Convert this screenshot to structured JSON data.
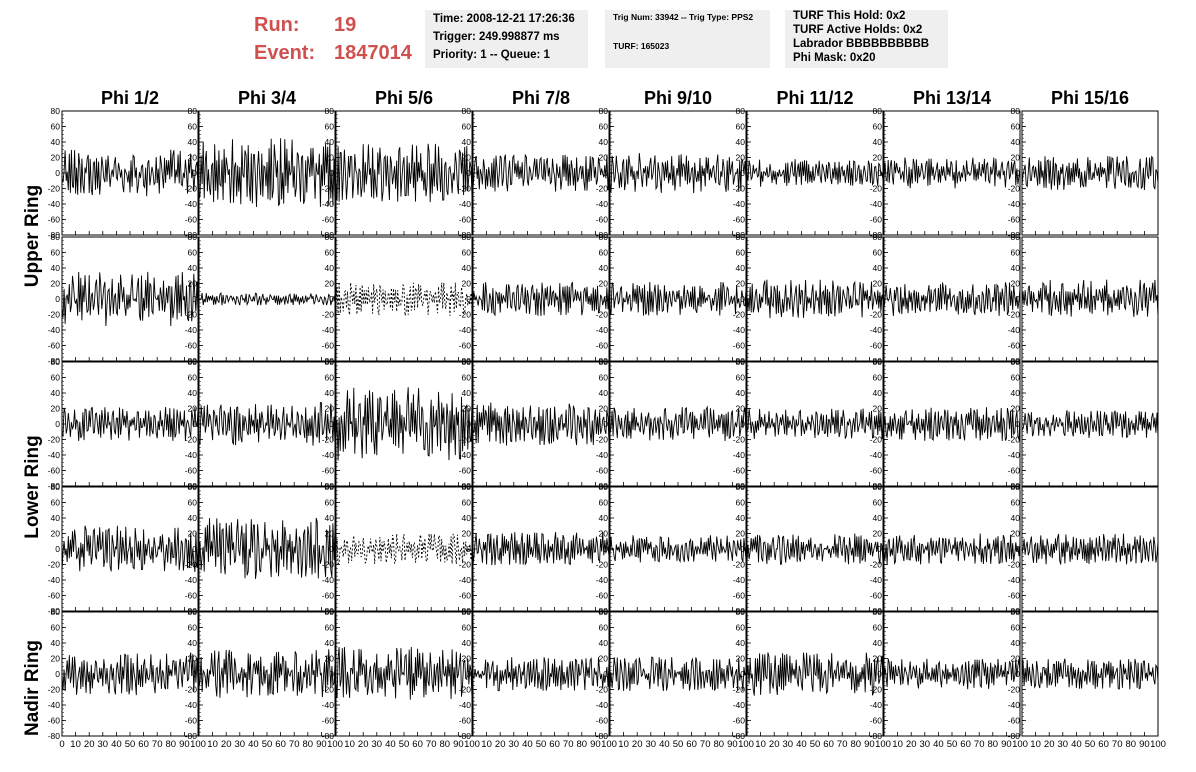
{
  "header": {
    "run_label": "Run:",
    "run_value": "19",
    "event_label": "Event:",
    "event_value": "1847014"
  },
  "info_box_1": {
    "time": "Time: 2008-12-21 17:26:36",
    "trigger": "Trigger: 249.998877 ms",
    "priority": "Priority: 1 -- Queue: 1"
  },
  "info_box_2": {
    "trig": "Trig Num: 33942 -- Trig Type: PPS2",
    "turf": "TURF: 165023"
  },
  "info_box_3": {
    "hold": "TURF This Hold: 0x2",
    "active": "TURF Active Holds: 0x2",
    "labrador": "Labrador BBBBBBBBBB",
    "phi_mask": "Phi Mask: 0x20"
  },
  "colors": {
    "header_red": "#d05050",
    "info_bg": "#efefef",
    "trace": "#000000"
  },
  "chart_data": {
    "type": "line",
    "columns": [
      "Phi 1/2",
      "Phi 3/4",
      "Phi 5/6",
      "Phi 7/8",
      "Phi 9/10",
      "Phi 11/12",
      "Phi 13/14",
      "Phi 15/16"
    ],
    "row_labels": [
      "Upper Ring",
      "Lower Ring",
      "Nadir Ring"
    ],
    "rows": 5,
    "ylim": [
      -80,
      80
    ],
    "xlim": [
      0,
      100
    ],
    "yticks": [
      -80,
      -60,
      -40,
      -20,
      0,
      20,
      40,
      60,
      80
    ],
    "xticks": [
      0,
      10,
      20,
      30,
      40,
      50,
      60,
      70,
      80,
      90,
      100
    ],
    "approx_amplitude": [
      [
        30,
        45,
        38,
        24,
        26,
        18,
        20,
        22
      ],
      [
        35,
        8,
        22,
        22,
        22,
        25,
        22,
        25
      ],
      [
        22,
        28,
        48,
        28,
        22,
        20,
        22,
        18
      ],
      [
        30,
        40,
        20,
        22,
        18,
        20,
        20,
        20
      ],
      [
        28,
        32,
        35,
        22,
        22,
        28,
        20,
        20
      ]
    ],
    "dashed_panels": [
      [
        1,
        2
      ],
      [
        3,
        2
      ]
    ]
  }
}
